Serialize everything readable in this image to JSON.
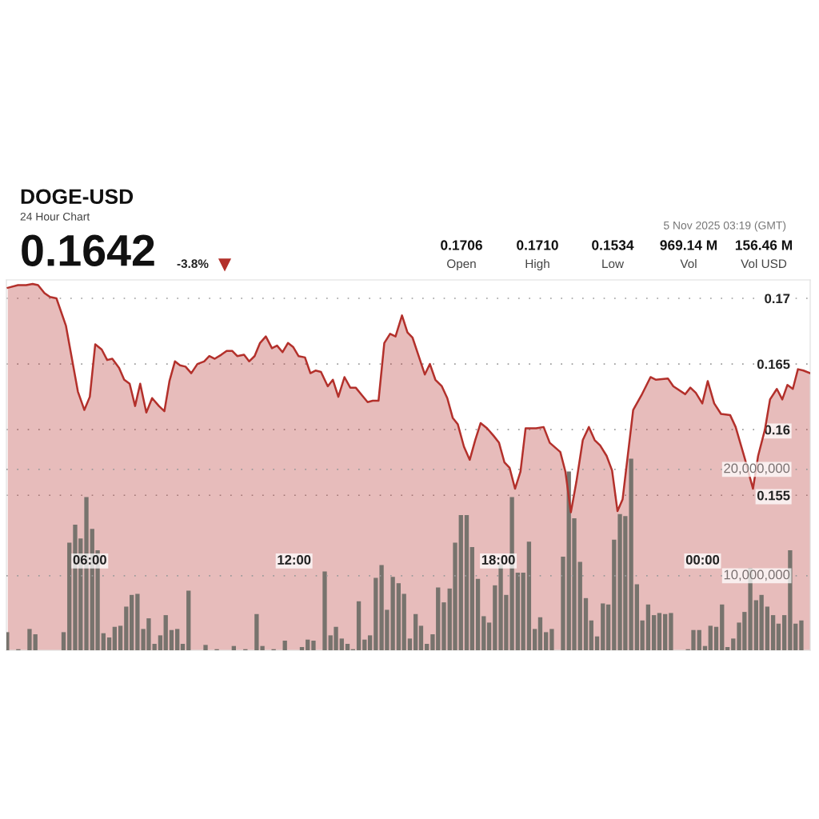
{
  "chart_data": {
    "type": "area",
    "title": "DOGE-USD",
    "subtitle": "24 Hour Chart",
    "annotations": [
      "0.1642",
      "-3.8%",
      "5 Nov 2025 03:19 (GMT)",
      "0.1706",
      "Open",
      "0.1710",
      "High",
      "0.1534",
      "Low",
      "969.14 M",
      "Vol",
      "156.46 M",
      "Vol USD"
    ],
    "xlim": [
      3.55,
      27.16
    ],
    "xticks": [
      {
        "value": 6,
        "label": "06:00"
      },
      {
        "value": 12,
        "label": "12:00"
      },
      {
        "value": 18,
        "label": "18:00"
      },
      {
        "value": 24,
        "label": "00:00"
      }
    ],
    "ylim": [
      0.1432,
      0.1714
    ],
    "yticks": [
      0.155,
      0.16,
      0.165,
      0.17
    ],
    "y2lim": [
      3000000,
      37800000
    ],
    "y2ticks": [
      {
        "value": 10000000,
        "label": "10,000,000"
      },
      {
        "value": 20000000,
        "label": "20,000,000"
      }
    ],
    "grid": "y",
    "line_style": "solid",
    "series": [
      {
        "color": "#b3302b",
        "x": [
          3.59,
          3.89,
          4.13,
          4.32,
          4.48,
          4.67,
          4.83,
          5.02,
          5.3,
          5.65,
          5.84,
          6.0,
          6.16,
          6.35,
          6.51,
          6.66,
          6.86,
          7.01,
          7.17,
          7.33,
          7.48,
          7.66,
          7.83,
          8.03,
          8.19,
          8.34,
          8.5,
          8.65,
          8.81,
          8.98,
          9.16,
          9.36,
          9.51,
          9.67,
          9.86,
          10.02,
          10.18,
          10.33,
          10.53,
          10.68,
          10.84,
          11.0,
          11.17,
          11.35,
          11.5,
          11.66,
          11.82,
          11.97,
          12.13,
          12.32,
          12.48,
          12.63,
          12.79,
          12.99,
          13.14,
          13.3,
          13.48,
          13.65,
          13.81,
          14.0,
          14.16,
          14.31,
          14.48,
          14.65,
          14.82,
          14.98,
          15.17,
          15.33,
          15.48,
          15.66,
          15.84,
          15.99,
          16.15,
          16.34,
          16.5,
          16.66,
          16.81,
          16.99,
          17.16,
          17.32,
          17.48,
          17.67,
          17.87,
          18.02,
          18.18,
          18.33,
          18.49,
          18.65,
          18.8,
          19.11,
          19.33,
          19.51,
          19.82,
          19.97,
          20.13,
          20.29,
          20.48,
          20.66,
          20.83,
          20.99,
          21.18,
          21.34,
          21.5,
          21.65,
          21.96,
          22.2,
          22.47,
          22.63,
          22.98,
          23.14,
          23.49,
          23.64,
          23.8,
          23.99,
          24.15,
          24.34,
          24.54,
          24.81,
          24.97,
          25.24,
          25.48,
          25.63,
          25.83,
          25.98,
          26.18,
          26.34,
          26.49,
          26.65,
          26.8,
          26.96,
          27.16
        ],
        "values": [
          0.1708,
          0.171,
          0.171,
          0.1711,
          0.171,
          0.1704,
          0.1701,
          0.17,
          0.1679,
          0.1629,
          0.1615,
          0.1625,
          0.1665,
          0.1661,
          0.1653,
          0.1654,
          0.1647,
          0.1638,
          0.1635,
          0.1618,
          0.1635,
          0.1613,
          0.1624,
          0.1618,
          0.1614,
          0.1637,
          0.1652,
          0.1649,
          0.1648,
          0.1643,
          0.165,
          0.1652,
          0.1656,
          0.1654,
          0.1657,
          0.166,
          0.166,
          0.1656,
          0.1657,
          0.1652,
          0.1656,
          0.1666,
          0.1671,
          0.1662,
          0.1664,
          0.1659,
          0.1666,
          0.1663,
          0.1656,
          0.1655,
          0.1643,
          0.1645,
          0.1644,
          0.1633,
          0.1638,
          0.1625,
          0.164,
          0.1632,
          0.1632,
          0.1626,
          0.1621,
          0.1622,
          0.1622,
          0.1666,
          0.1673,
          0.1671,
          0.1687,
          0.1674,
          0.167,
          0.1656,
          0.1642,
          0.165,
          0.1638,
          0.1633,
          0.1624,
          0.1609,
          0.1604,
          0.1587,
          0.1577,
          0.1592,
          0.1605,
          0.1601,
          0.1595,
          0.159,
          0.1575,
          0.1571,
          0.1555,
          0.1568,
          0.1601,
          0.1601,
          0.1602,
          0.159,
          0.1583,
          0.1568,
          0.1537,
          0.156,
          0.1592,
          0.1602,
          0.1592,
          0.1588,
          0.158,
          0.1569,
          0.1538,
          0.1547,
          0.1615,
          0.1626,
          0.164,
          0.1638,
          0.1639,
          0.1633,
          0.1627,
          0.1632,
          0.1628,
          0.162,
          0.1637,
          0.162,
          0.1612,
          0.1611,
          0.1602,
          0.1578,
          0.1555,
          0.158,
          0.16,
          0.1623,
          0.1631,
          0.1623,
          0.1634,
          0.1631,
          0.1646,
          0.1645,
          0.1643
        ]
      },
      {
        "type": "bar",
        "axis": "y2",
        "color": "#77736d",
        "x": [
          3.57,
          3.9,
          4.23,
          4.4,
          5.23,
          5.4,
          5.57,
          5.73,
          5.9,
          6.07,
          6.23,
          6.4,
          6.57,
          6.73,
          6.9,
          7.07,
          7.23,
          7.4,
          7.57,
          7.73,
          7.9,
          8.07,
          8.23,
          8.4,
          8.57,
          8.73,
          8.9,
          9.4,
          9.73,
          10.23,
          10.57,
          10.9,
          11.07,
          11.4,
          11.73,
          12.23,
          12.4,
          12.57,
          12.9,
          13.07,
          13.23,
          13.4,
          13.57,
          13.73,
          13.9,
          14.07,
          14.23,
          14.4,
          14.57,
          14.73,
          14.9,
          15.07,
          15.23,
          15.4,
          15.57,
          15.73,
          15.9,
          16.07,
          16.23,
          16.4,
          16.57,
          16.73,
          16.9,
          17.07,
          17.23,
          17.4,
          17.57,
          17.73,
          17.9,
          18.07,
          18.23,
          18.4,
          18.57,
          18.73,
          18.9,
          19.07,
          19.23,
          19.4,
          19.57,
          19.9,
          20.07,
          20.23,
          20.4,
          20.57,
          20.73,
          20.9,
          21.07,
          21.23,
          21.4,
          21.57,
          21.73,
          21.9,
          22.07,
          22.23,
          22.4,
          22.57,
          22.73,
          22.9,
          23.07,
          23.57,
          23.73,
          23.9,
          24.07,
          24.23,
          24.4,
          24.57,
          24.73,
          24.9,
          25.07,
          25.23,
          25.4,
          25.57,
          25.73,
          25.9,
          26.07,
          26.23,
          26.4,
          26.57,
          26.73,
          26.9
        ],
        "values": [
          4700000,
          3100000,
          5000000,
          4500000,
          4700000,
          13100000,
          14800000,
          13500000,
          17400000,
          14400000,
          12400000,
          4600000,
          4200000,
          5200000,
          5300000,
          7100000,
          8200000,
          8300000,
          5000000,
          6000000,
          3600000,
          4400000,
          6300000,
          4900000,
          5000000,
          3600000,
          8600000,
          3500000,
          3100000,
          3400000,
          3100000,
          6400000,
          3400000,
          3100000,
          3900000,
          3300000,
          4000000,
          3900000,
          10400000,
          4400000,
          5200000,
          4100000,
          3600000,
          3100000,
          7600000,
          4000000,
          4400000,
          9800000,
          11000000,
          6800000,
          9900000,
          9300000,
          8300000,
          4100000,
          6400000,
          5300000,
          3600000,
          4500000,
          8900000,
          7500000,
          8800000,
          13100000,
          15700000,
          15700000,
          12700000,
          9700000,
          6200000,
          5600000,
          9100000,
          11100000,
          8200000,
          17400000,
          10300000,
          10300000,
          13200000,
          5000000,
          6100000,
          4700000,
          5000000,
          11800000,
          19800000,
          15400000,
          11300000,
          7900000,
          5800000,
          4300000,
          7400000,
          7300000,
          13400000,
          15800000,
          15600000,
          21000000,
          9200000,
          5800000,
          7300000,
          6300000,
          6500000,
          6400000,
          6500000,
          3100000,
          4900000,
          4900000,
          3400000,
          5300000,
          5200000,
          7300000,
          3300000,
          4100000,
          5600000,
          6600000,
          10700000,
          7700000,
          8200000,
          7100000,
          6300000,
          5500000,
          6300000,
          12400000,
          5500000,
          5800000
        ]
      }
    ]
  }
}
